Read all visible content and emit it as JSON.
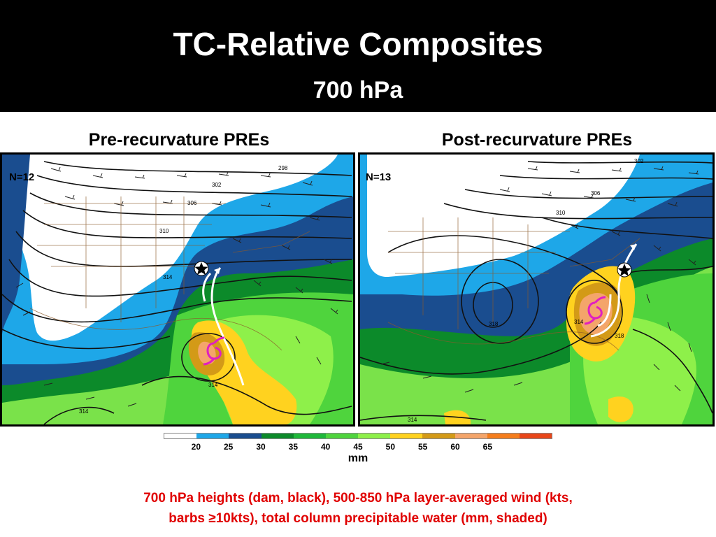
{
  "title": "TC-Relative Composites",
  "subtitle": "700 hPa",
  "panels": [
    {
      "title": "Pre-recurvature PREs",
      "n_label": "N=12",
      "contour_labels": [
        "298",
        "302",
        "306",
        "310",
        "314",
        "314",
        "314"
      ]
    },
    {
      "title": "Post-recurvature PREs",
      "n_label": "N=13",
      "contour_labels": [
        "302",
        "306",
        "310",
        "314",
        "318",
        "318",
        "314"
      ]
    }
  ],
  "colorbar": {
    "colors": [
      "#ffffff",
      "#1ea7e8",
      "#1a4d8f",
      "#0c8a2a",
      "#1fb83a",
      "#4fd43d",
      "#8ef04a",
      "#ffd21f",
      "#d39a17",
      "#f4a56a",
      "#f57d1c",
      "#e8461a"
    ],
    "ticks": [
      "20",
      "25",
      "30",
      "35",
      "40",
      "45",
      "50",
      "55",
      "60",
      "65"
    ],
    "unit": "mm"
  },
  "caption_line1": "700 hPa heights (dam, black), 500-850 hPa layer-averaged wind (kts,",
  "caption_line2": "barbs ≥10kts), total column precipitable water (mm, shaded)",
  "colors": {
    "header_bg": "#000000",
    "caption": "#e00000"
  }
}
